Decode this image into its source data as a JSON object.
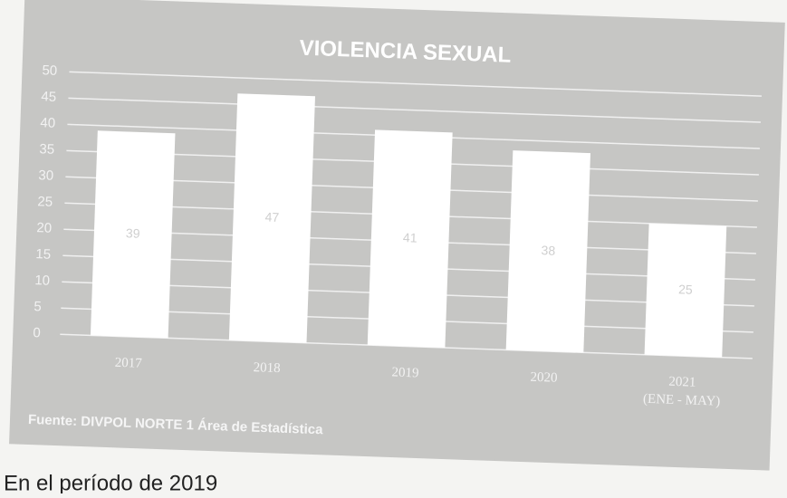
{
  "chart_data": {
    "type": "bar",
    "title": "VIOLENCIA SEXUAL",
    "categories": [
      "2017",
      "2018",
      "2019",
      "2020",
      "2021 (ENE - MAY)"
    ],
    "values": [
      39,
      47,
      41,
      38,
      25
    ],
    "color": "#ffffff",
    "ylim": [
      0,
      50
    ],
    "yticks": [
      0,
      5,
      10,
      15,
      20,
      25,
      30,
      35,
      40,
      45,
      50
    ],
    "grid": true,
    "source": "Fuente: DIVPOL NORTE 1 Área de Estadística"
  },
  "body_text": "En el período de 2019"
}
